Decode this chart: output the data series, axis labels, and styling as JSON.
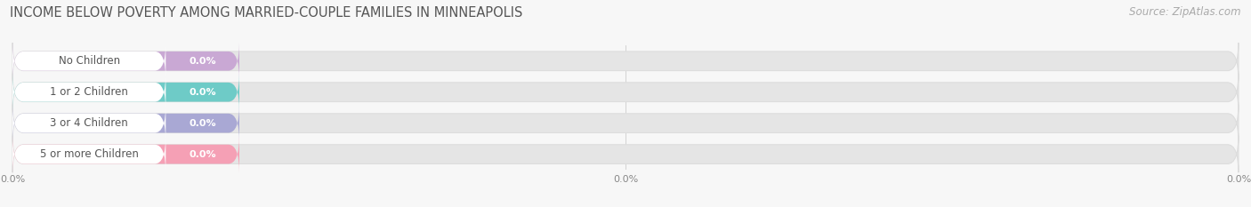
{
  "title": "INCOME BELOW POVERTY AMONG MARRIED-COUPLE FAMILIES IN MINNEAPOLIS",
  "source": "Source: ZipAtlas.com",
  "categories": [
    "No Children",
    "1 or 2 Children",
    "3 or 4 Children",
    "5 or more Children"
  ],
  "values": [
    0.0,
    0.0,
    0.0,
    0.0
  ],
  "bar_colors": [
    "#c9a8d4",
    "#6ecbc7",
    "#a9a8d4",
    "#f5a0b5"
  ],
  "background_color": "#f7f7f7",
  "bar_track_color": "#e5e5e5",
  "white_pill_color": "#ffffff",
  "label_text_color": "#555555",
  "value_text_color": "#ffffff",
  "title_color": "#555555",
  "source_color": "#aaaaaa",
  "title_fontsize": 10.5,
  "source_fontsize": 8.5,
  "label_fontsize": 8.5,
  "value_fontsize": 8.0,
  "xtick_fontsize": 8.0,
  "xtick_color": "#888888",
  "figsize": [
    14.06,
    2.33
  ],
  "dpi": 100
}
